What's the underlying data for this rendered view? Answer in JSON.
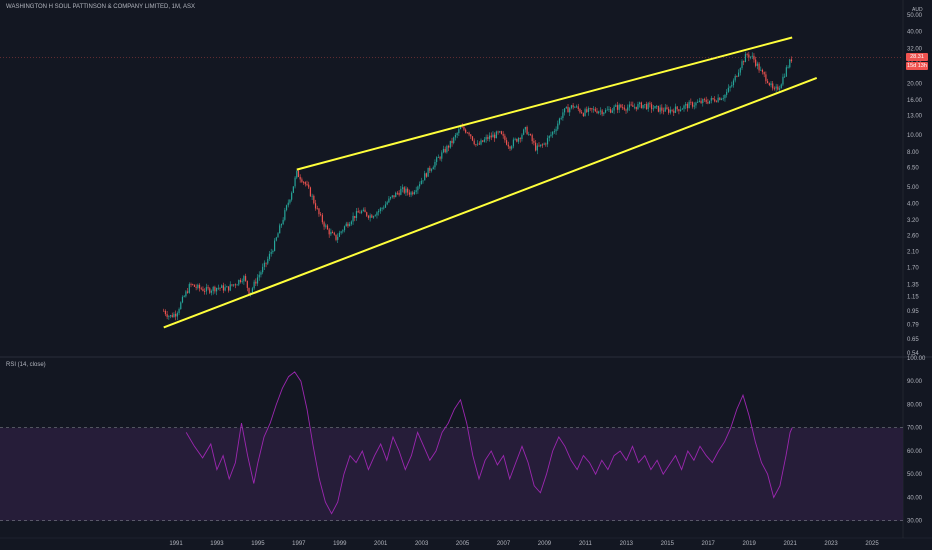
{
  "header": {
    "symbol_title": "WASHINGTON H SOUL PATTINSON & COMPANY LIMITED, 1M, ASX",
    "currency": "AUD"
  },
  "rsi_panel": {
    "label": "RSI (14, close)"
  },
  "price_tags": {
    "last_price": "28.31",
    "countdown": "15d 13h"
  },
  "colors": {
    "background": "#131722",
    "up_candle": "#26a69a",
    "down_candle": "#ef5350",
    "trendline": "#ffff3b",
    "rsi_line": "#9c27b0",
    "rsi_band": "#2a1f3d",
    "text": "#b2b5be"
  },
  "chart_data": [
    {
      "type": "candlestick",
      "title": "WASHINGTON H SOUL PATTINSON & COMPANY LIMITED, 1M, ASX",
      "scale": "log",
      "ylim": [
        0.54,
        50.0
      ],
      "y_ticks": [
        50.0,
        40.0,
        32.0,
        26.0,
        20.0,
        16.0,
        13.0,
        10.0,
        8.0,
        6.5,
        5.0,
        4.0,
        3.2,
        2.6,
        2.1,
        1.7,
        1.35,
        1.15,
        0.95,
        0.79,
        0.65,
        0.54
      ],
      "x_ticks": [
        "1991",
        "1993",
        "1995",
        "1997",
        "1999",
        "2001",
        "2003",
        "2005",
        "2007",
        "2009",
        "2011",
        "2013",
        "2015",
        "2017",
        "2019",
        "2021",
        "2023",
        "2025"
      ],
      "xlim": [
        1989.6,
        2027.0
      ],
      "close_path": [
        [
          1990.4,
          0.95
        ],
        [
          1990.7,
          0.88
        ],
        [
          1991.0,
          0.92
        ],
        [
          1991.4,
          1.15
        ],
        [
          1991.7,
          1.35
        ],
        [
          1992.0,
          1.3
        ],
        [
          1992.5,
          1.25
        ],
        [
          1993.0,
          1.3
        ],
        [
          1993.5,
          1.28
        ],
        [
          1994.0,
          1.4
        ],
        [
          1994.3,
          1.5
        ],
        [
          1994.6,
          1.2
        ],
        [
          1995.0,
          1.5
        ],
        [
          1995.4,
          1.8
        ],
        [
          1995.8,
          2.3
        ],
        [
          1996.2,
          3.2
        ],
        [
          1996.6,
          4.5
        ],
        [
          1996.9,
          6.0
        ],
        [
          1997.2,
          5.5
        ],
        [
          1997.6,
          4.5
        ],
        [
          1998.0,
          3.4
        ],
        [
          1998.4,
          2.8
        ],
        [
          1998.8,
          2.5
        ],
        [
          1999.2,
          2.9
        ],
        [
          1999.6,
          3.3
        ],
        [
          2000.0,
          3.6
        ],
        [
          2000.5,
          3.4
        ],
        [
          2001.0,
          3.7
        ],
        [
          2001.5,
          4.3
        ],
        [
          2002.0,
          4.8
        ],
        [
          2002.5,
          4.6
        ],
        [
          2003.0,
          5.5
        ],
        [
          2003.5,
          6.6
        ],
        [
          2004.0,
          7.8
        ],
        [
          2004.5,
          9.2
        ],
        [
          2004.9,
          11.0
        ],
        [
          2005.3,
          10.5
        ],
        [
          2005.7,
          8.6
        ],
        [
          2006.2,
          9.6
        ],
        [
          2006.8,
          10.2
        ],
        [
          2007.3,
          8.7
        ],
        [
          2007.7,
          9.6
        ],
        [
          2008.1,
          10.8
        ],
        [
          2008.6,
          8.3
        ],
        [
          2009.0,
          8.9
        ],
        [
          2009.5,
          10.8
        ],
        [
          2009.9,
          13.6
        ],
        [
          2010.4,
          14.8
        ],
        [
          2010.9,
          13.5
        ],
        [
          2011.4,
          14.0
        ],
        [
          2012.0,
          13.8
        ],
        [
          2012.6,
          14.6
        ],
        [
          2013.2,
          14.5
        ],
        [
          2013.8,
          15.0
        ],
        [
          2014.4,
          14.3
        ],
        [
          2015.0,
          13.9
        ],
        [
          2015.5,
          14.2
        ],
        [
          2016.0,
          14.9
        ],
        [
          2016.6,
          15.5
        ],
        [
          2017.2,
          16.0
        ],
        [
          2017.8,
          17.0
        ],
        [
          2018.2,
          20.0
        ],
        [
          2018.6,
          26.0
        ],
        [
          2018.9,
          29.5
        ],
        [
          2019.2,
          28.0
        ],
        [
          2019.6,
          23.0
        ],
        [
          2019.9,
          21.0
        ],
        [
          2020.2,
          17.8
        ],
        [
          2020.5,
          19.5
        ],
        [
          2020.8,
          24.0
        ],
        [
          2021.1,
          28.31
        ]
      ],
      "trendlines": [
        {
          "name": "upper",
          "points": [
            [
              1996.9,
              6.3
            ],
            [
              2021.1,
              37.0
            ]
          ]
        },
        {
          "name": "lower",
          "points": [
            [
              1990.4,
              0.76
            ],
            [
              2022.3,
              21.5
            ]
          ]
        }
      ],
      "last_price": 28.31
    },
    {
      "type": "line",
      "title": "RSI (14, close)",
      "ylim": [
        26.0,
        100.0
      ],
      "y_ticks": [
        100.0,
        90.0,
        80.0,
        70.0,
        60.0,
        50.0,
        40.0,
        30.0
      ],
      "band": [
        30.0,
        70.0
      ],
      "points": [
        [
          1991.5,
          68
        ],
        [
          1991.9,
          62
        ],
        [
          1992.3,
          57
        ],
        [
          1992.7,
          63
        ],
        [
          1993.0,
          52
        ],
        [
          1993.3,
          58
        ],
        [
          1993.6,
          48
        ],
        [
          1993.9,
          55
        ],
        [
          1994.2,
          72
        ],
        [
          1994.5,
          58
        ],
        [
          1994.8,
          46
        ],
        [
          1995.0,
          55
        ],
        [
          1995.3,
          66
        ],
        [
          1995.6,
          72
        ],
        [
          1995.9,
          80
        ],
        [
          1996.2,
          87
        ],
        [
          1996.5,
          92
        ],
        [
          1996.8,
          94
        ],
        [
          1997.1,
          90
        ],
        [
          1997.4,
          78
        ],
        [
          1997.7,
          62
        ],
        [
          1998.0,
          48
        ],
        [
          1998.3,
          38
        ],
        [
          1998.6,
          33
        ],
        [
          1998.9,
          38
        ],
        [
          1999.2,
          50
        ],
        [
          1999.5,
          58
        ],
        [
          1999.8,
          55
        ],
        [
          2000.1,
          60
        ],
        [
          2000.4,
          52
        ],
        [
          2000.7,
          58
        ],
        [
          2001.0,
          63
        ],
        [
          2001.3,
          56
        ],
        [
          2001.6,
          66
        ],
        [
          2001.9,
          60
        ],
        [
          2002.2,
          52
        ],
        [
          2002.5,
          58
        ],
        [
          2002.8,
          68
        ],
        [
          2003.1,
          62
        ],
        [
          2003.4,
          56
        ],
        [
          2003.7,
          60
        ],
        [
          2004.0,
          68
        ],
        [
          2004.3,
          72
        ],
        [
          2004.6,
          78
        ],
        [
          2004.9,
          82
        ],
        [
          2005.2,
          72
        ],
        [
          2005.5,
          58
        ],
        [
          2005.8,
          48
        ],
        [
          2006.1,
          56
        ],
        [
          2006.4,
          60
        ],
        [
          2006.7,
          54
        ],
        [
          2007.0,
          58
        ],
        [
          2007.3,
          48
        ],
        [
          2007.6,
          55
        ],
        [
          2007.9,
          62
        ],
        [
          2008.2,
          55
        ],
        [
          2008.5,
          45
        ],
        [
          2008.8,
          42
        ],
        [
          2009.1,
          50
        ],
        [
          2009.4,
          60
        ],
        [
          2009.7,
          66
        ],
        [
          2010.0,
          62
        ],
        [
          2010.3,
          56
        ],
        [
          2010.6,
          52
        ],
        [
          2010.9,
          58
        ],
        [
          2011.2,
          55
        ],
        [
          2011.5,
          50
        ],
        [
          2011.8,
          56
        ],
        [
          2012.1,
          52
        ],
        [
          2012.4,
          58
        ],
        [
          2012.7,
          60
        ],
        [
          2013.0,
          56
        ],
        [
          2013.3,
          62
        ],
        [
          2013.6,
          55
        ],
        [
          2013.9,
          58
        ],
        [
          2014.2,
          52
        ],
        [
          2014.5,
          56
        ],
        [
          2014.8,
          50
        ],
        [
          2015.1,
          54
        ],
        [
          2015.4,
          58
        ],
        [
          2015.7,
          52
        ],
        [
          2016.0,
          60
        ],
        [
          2016.3,
          56
        ],
        [
          2016.6,
          62
        ],
        [
          2016.9,
          58
        ],
        [
          2017.2,
          55
        ],
        [
          2017.5,
          60
        ],
        [
          2017.8,
          64
        ],
        [
          2018.1,
          70
        ],
        [
          2018.4,
          78
        ],
        [
          2018.7,
          84
        ],
        [
          2019.0,
          75
        ],
        [
          2019.3,
          64
        ],
        [
          2019.6,
          55
        ],
        [
          2019.9,
          50
        ],
        [
          2020.2,
          40
        ],
        [
          2020.5,
          45
        ],
        [
          2020.8,
          58
        ],
        [
          2021.0,
          68
        ],
        [
          2021.1,
          70
        ]
      ]
    }
  ]
}
